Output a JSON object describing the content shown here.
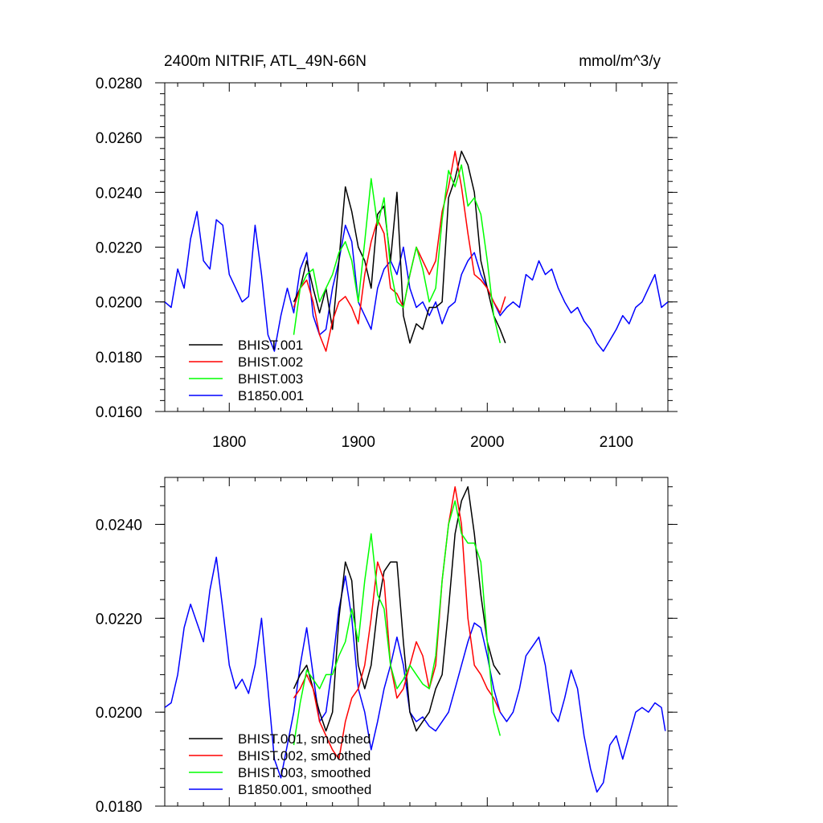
{
  "chart_data": [
    {
      "type": "line",
      "title_left": "2400m NITRIF, ATL_49N-66N",
      "title_right": "mmol/m^3/y",
      "xlim": [
        1750,
        2140
      ],
      "ylim": [
        0.016,
        0.028
      ],
      "x_ticks": [
        1800,
        1900,
        2000,
        2100
      ],
      "x_tick_labels": [
        "1800",
        "1900",
        "2000",
        "2100"
      ],
      "y_ticks": [
        0.016,
        0.018,
        0.02,
        0.022,
        0.024,
        0.026,
        0.028
      ],
      "y_tick_labels": [
        "0.0160",
        "0.0180",
        "0.0200",
        "0.0220",
        "0.0240",
        "0.0260",
        "0.0280"
      ],
      "legend_position": "bottom-left",
      "series": [
        {
          "name": "BHIST.001",
          "color": "#000000",
          "x": [
            1850,
            1855,
            1860,
            1865,
            1870,
            1875,
            1880,
            1885,
            1890,
            1895,
            1900,
            1905,
            1910,
            1915,
            1920,
            1925,
            1930,
            1935,
            1940,
            1945,
            1950,
            1955,
            1960,
            1965,
            1970,
            1975,
            1980,
            1985,
            1990,
            1995,
            2000,
            2005,
            2010,
            2014
          ],
          "y": [
            0.02,
            0.0205,
            0.0215,
            0.0205,
            0.0196,
            0.0205,
            0.019,
            0.0215,
            0.0242,
            0.0233,
            0.022,
            0.0215,
            0.0205,
            0.0232,
            0.0235,
            0.0215,
            0.024,
            0.0195,
            0.0185,
            0.0192,
            0.019,
            0.0198,
            0.0198,
            0.02,
            0.0238,
            0.0245,
            0.0255,
            0.025,
            0.024,
            0.0215,
            0.0205,
            0.0195,
            0.019,
            0.0185
          ]
        },
        {
          "name": "BHIST.002",
          "color": "#ff0000",
          "x": [
            1850,
            1855,
            1860,
            1865,
            1870,
            1875,
            1880,
            1885,
            1890,
            1895,
            1900,
            1905,
            1910,
            1915,
            1920,
            1925,
            1930,
            1935,
            1940,
            1945,
            1950,
            1955,
            1960,
            1965,
            1970,
            1975,
            1980,
            1985,
            1990,
            1995,
            2000,
            2005,
            2010,
            2014
          ],
          "y": [
            0.0198,
            0.0205,
            0.0208,
            0.02,
            0.0188,
            0.0182,
            0.0193,
            0.02,
            0.0202,
            0.0198,
            0.0192,
            0.021,
            0.0222,
            0.023,
            0.0225,
            0.0205,
            0.0203,
            0.0198,
            0.021,
            0.022,
            0.0215,
            0.021,
            0.0215,
            0.0233,
            0.0242,
            0.0255,
            0.0242,
            0.0225,
            0.021,
            0.0208,
            0.0205,
            0.02,
            0.0196,
            0.0202
          ]
        },
        {
          "name": "BHIST.003",
          "color": "#00ff00",
          "x": [
            1850,
            1855,
            1860,
            1865,
            1870,
            1875,
            1880,
            1885,
            1890,
            1895,
            1900,
            1905,
            1910,
            1915,
            1920,
            1925,
            1930,
            1935,
            1940,
            1945,
            1950,
            1955,
            1960,
            1965,
            1970,
            1975,
            1980,
            1985,
            1990,
            1995,
            2000,
            2005,
            2010
          ],
          "y": [
            0.0188,
            0.0205,
            0.021,
            0.0212,
            0.02,
            0.0205,
            0.021,
            0.0218,
            0.0222,
            0.0215,
            0.02,
            0.0222,
            0.0245,
            0.0228,
            0.0238,
            0.0212,
            0.02,
            0.0198,
            0.021,
            0.022,
            0.0212,
            0.02,
            0.0205,
            0.023,
            0.0248,
            0.0242,
            0.025,
            0.0235,
            0.0238,
            0.0232,
            0.0215,
            0.0195,
            0.0185
          ]
        },
        {
          "name": "B1850.001",
          "color": "#0000ff",
          "x": [
            1750,
            1755,
            1760,
            1765,
            1770,
            1775,
            1780,
            1785,
            1790,
            1795,
            1800,
            1805,
            1810,
            1815,
            1820,
            1825,
            1830,
            1835,
            1840,
            1845,
            1850,
            1855,
            1860,
            1865,
            1870,
            1875,
            1880,
            1885,
            1890,
            1895,
            1900,
            1905,
            1910,
            1915,
            1920,
            1925,
            1930,
            1935,
            1940,
            1945,
            1950,
            1955,
            1960,
            1965,
            1970,
            1975,
            1980,
            1985,
            1990,
            1995,
            2000,
            2005,
            2010,
            2015,
            2020,
            2025,
            2030,
            2035,
            2040,
            2045,
            2050,
            2055,
            2060,
            2065,
            2070,
            2075,
            2080,
            2085,
            2090,
            2095,
            2100,
            2105,
            2110,
            2115,
            2120,
            2125,
            2130,
            2135,
            2140
          ],
          "y": [
            0.02,
            0.0198,
            0.0212,
            0.0205,
            0.0223,
            0.0233,
            0.0215,
            0.0212,
            0.023,
            0.0228,
            0.021,
            0.0205,
            0.02,
            0.0202,
            0.0228,
            0.021,
            0.0188,
            0.0182,
            0.0195,
            0.0205,
            0.0196,
            0.0212,
            0.0218,
            0.0195,
            0.0188,
            0.019,
            0.0205,
            0.0215,
            0.0228,
            0.0222,
            0.02,
            0.0195,
            0.019,
            0.0205,
            0.0212,
            0.0215,
            0.021,
            0.022,
            0.0205,
            0.0198,
            0.02,
            0.0195,
            0.02,
            0.0192,
            0.0198,
            0.02,
            0.021,
            0.0215,
            0.0218,
            0.021,
            0.0205,
            0.02,
            0.0195,
            0.0198,
            0.02,
            0.0198,
            0.021,
            0.0208,
            0.0215,
            0.021,
            0.0212,
            0.0205,
            0.02,
            0.0196,
            0.0198,
            0.0193,
            0.019,
            0.0185,
            0.0182,
            0.0186,
            0.019,
            0.0195,
            0.0192,
            0.0198,
            0.02,
            0.0205,
            0.021,
            0.0198,
            0.02
          ]
        }
      ]
    },
    {
      "type": "line",
      "xlim": [
        1750,
        2140
      ],
      "ylim": [
        0.018,
        0.025
      ],
      "x_ticks": [
        1800,
        1900,
        2000,
        2100
      ],
      "y_ticks": [
        0.018,
        0.02,
        0.022,
        0.024
      ],
      "y_tick_labels": [
        "0.0180",
        "0.0200",
        "0.0220",
        "0.0240"
      ],
      "legend_position": "bottom-left",
      "series": [
        {
          "name": "BHIST.001, smoothed",
          "color": "#000000",
          "x": [
            1850,
            1855,
            1860,
            1865,
            1870,
            1875,
            1880,
            1885,
            1890,
            1895,
            1900,
            1905,
            1910,
            1915,
            1920,
            1925,
            1930,
            1935,
            1940,
            1945,
            1950,
            1955,
            1960,
            1965,
            1970,
            1975,
            1980,
            1985,
            1990,
            1995,
            2000,
            2005,
            2010
          ],
          "y": [
            0.0205,
            0.0208,
            0.021,
            0.0205,
            0.02,
            0.0196,
            0.02,
            0.022,
            0.0232,
            0.0228,
            0.021,
            0.0205,
            0.021,
            0.0222,
            0.023,
            0.0232,
            0.0232,
            0.0215,
            0.02,
            0.0196,
            0.0198,
            0.02,
            0.0205,
            0.0208,
            0.0222,
            0.0238,
            0.0245,
            0.0248,
            0.0238,
            0.0225,
            0.0215,
            0.021,
            0.0208
          ]
        },
        {
          "name": "BHIST.002, smoothed",
          "color": "#ff0000",
          "x": [
            1850,
            1855,
            1860,
            1865,
            1870,
            1875,
            1880,
            1885,
            1890,
            1895,
            1900,
            1905,
            1910,
            1915,
            1920,
            1925,
            1930,
            1935,
            1940,
            1945,
            1950,
            1955,
            1960,
            1965,
            1970,
            1975,
            1980,
            1985,
            1990,
            1995,
            2000,
            2005,
            2010
          ],
          "y": [
            0.0203,
            0.0205,
            0.0208,
            0.0205,
            0.0198,
            0.0195,
            0.0192,
            0.019,
            0.0198,
            0.0203,
            0.0205,
            0.021,
            0.022,
            0.0232,
            0.0228,
            0.021,
            0.0203,
            0.0205,
            0.021,
            0.0215,
            0.0212,
            0.0205,
            0.021,
            0.0228,
            0.024,
            0.0248,
            0.024,
            0.022,
            0.021,
            0.0208,
            0.0205,
            0.0203,
            0.02
          ]
        },
        {
          "name": "BHIST.003, smoothed",
          "color": "#00ff00",
          "x": [
            1850,
            1855,
            1860,
            1865,
            1870,
            1875,
            1880,
            1885,
            1890,
            1895,
            1900,
            1905,
            1910,
            1915,
            1920,
            1925,
            1930,
            1935,
            1940,
            1945,
            1950,
            1955,
            1960,
            1965,
            1970,
            1975,
            1980,
            1985,
            1990,
            1995,
            2000,
            2005,
            2010
          ],
          "y": [
            0.0193,
            0.0202,
            0.0209,
            0.0207,
            0.0205,
            0.0208,
            0.0208,
            0.0212,
            0.0215,
            0.0222,
            0.0215,
            0.0228,
            0.0238,
            0.0225,
            0.0222,
            0.021,
            0.0205,
            0.0207,
            0.021,
            0.0208,
            0.0206,
            0.0205,
            0.0212,
            0.0228,
            0.024,
            0.0245,
            0.0238,
            0.0236,
            0.0236,
            0.0232,
            0.0215,
            0.02,
            0.0195
          ]
        },
        {
          "name": "B1850.001, smoothed",
          "color": "#0000ff",
          "x": [
            1750,
            1755,
            1760,
            1765,
            1770,
            1775,
            1780,
            1785,
            1790,
            1795,
            1800,
            1805,
            1810,
            1815,
            1820,
            1825,
            1830,
            1835,
            1840,
            1845,
            1850,
            1855,
            1860,
            1865,
            1870,
            1875,
            1880,
            1885,
            1890,
            1895,
            1900,
            1905,
            1910,
            1915,
            1920,
            1925,
            1930,
            1935,
            1940,
            1945,
            1950,
            1955,
            1960,
            1965,
            1970,
            1975,
            1980,
            1985,
            1990,
            1995,
            2000,
            2005,
            2010,
            2015,
            2020,
            2025,
            2030,
            2035,
            2040,
            2045,
            2050,
            2055,
            2060,
            2065,
            2070,
            2075,
            2080,
            2085,
            2090,
            2095,
            2100,
            2105,
            2110,
            2115,
            2120,
            2125,
            2130,
            2135,
            2138
          ],
          "y": [
            0.0201,
            0.0202,
            0.0208,
            0.0218,
            0.0223,
            0.0219,
            0.0215,
            0.0226,
            0.0233,
            0.0222,
            0.021,
            0.0205,
            0.0207,
            0.0204,
            0.021,
            0.022,
            0.0205,
            0.019,
            0.0186,
            0.0193,
            0.02,
            0.021,
            0.0218,
            0.0208,
            0.0198,
            0.02,
            0.021,
            0.0222,
            0.0229,
            0.022,
            0.0205,
            0.02,
            0.0192,
            0.0198,
            0.0205,
            0.021,
            0.0216,
            0.021,
            0.02,
            0.0198,
            0.0199,
            0.0197,
            0.0196,
            0.0198,
            0.02,
            0.0205,
            0.021,
            0.0215,
            0.0219,
            0.0218,
            0.0212,
            0.0205,
            0.02,
            0.0198,
            0.02,
            0.0205,
            0.0212,
            0.0214,
            0.0216,
            0.021,
            0.02,
            0.0198,
            0.0203,
            0.0209,
            0.0205,
            0.0195,
            0.0188,
            0.0183,
            0.0185,
            0.0193,
            0.0195,
            0.019,
            0.0195,
            0.02,
            0.0201,
            0.02,
            0.0202,
            0.0201,
            0.0196
          ]
        }
      ]
    }
  ]
}
